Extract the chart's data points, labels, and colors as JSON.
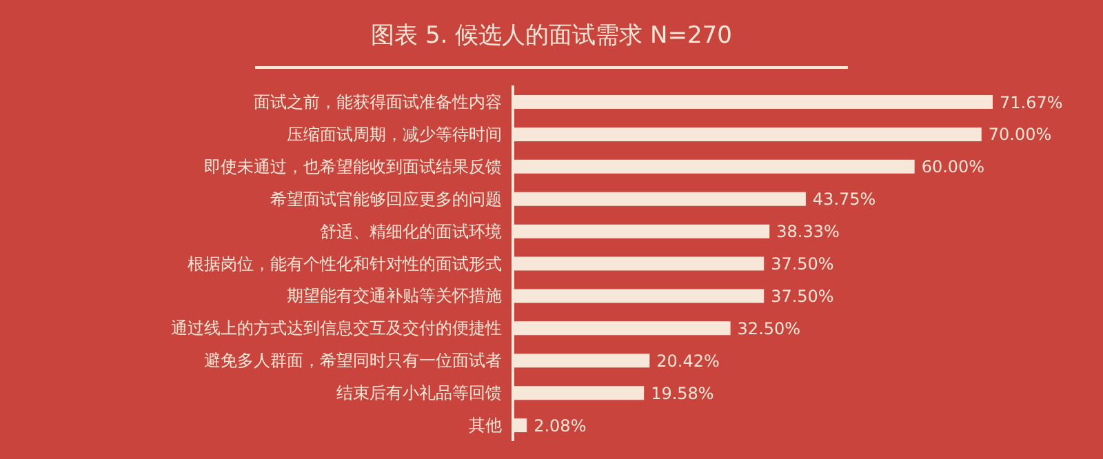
{
  "chart_data": {
    "type": "bar",
    "orientation": "horizontal",
    "title": "图表 5. 候选人的面试需求 N=270",
    "categories": [
      "面试之前，能获得面试准备性内容",
      "压缩面试周期，减少等待时间",
      "即使未通过，也希望能收到面试结果反馈",
      "希望面试官能够回应更多的问题",
      "舒适、精细化的面试环境",
      "根据岗位，能有个性化和针对性的面试形式",
      "期望能有交通补贴等关怀措施",
      "通过线上的方式达到信息交互及交付的便捷性",
      "避免多人群面，希望同时只有一位面试者",
      "结束后有小礼品等回馈",
      "其他"
    ],
    "values": [
      71.67,
      70.0,
      60.0,
      43.75,
      38.33,
      37.5,
      37.5,
      32.5,
      20.42,
      19.58,
      2.08
    ],
    "value_labels": [
      "71.67%",
      "70.00%",
      "60.00%",
      "43.75%",
      "38.33%",
      "37.50%",
      "37.50%",
      "32.50%",
      "20.42%",
      "19.58%",
      "2.08%"
    ],
    "color": "#f6e7d8",
    "grid": false
  }
}
